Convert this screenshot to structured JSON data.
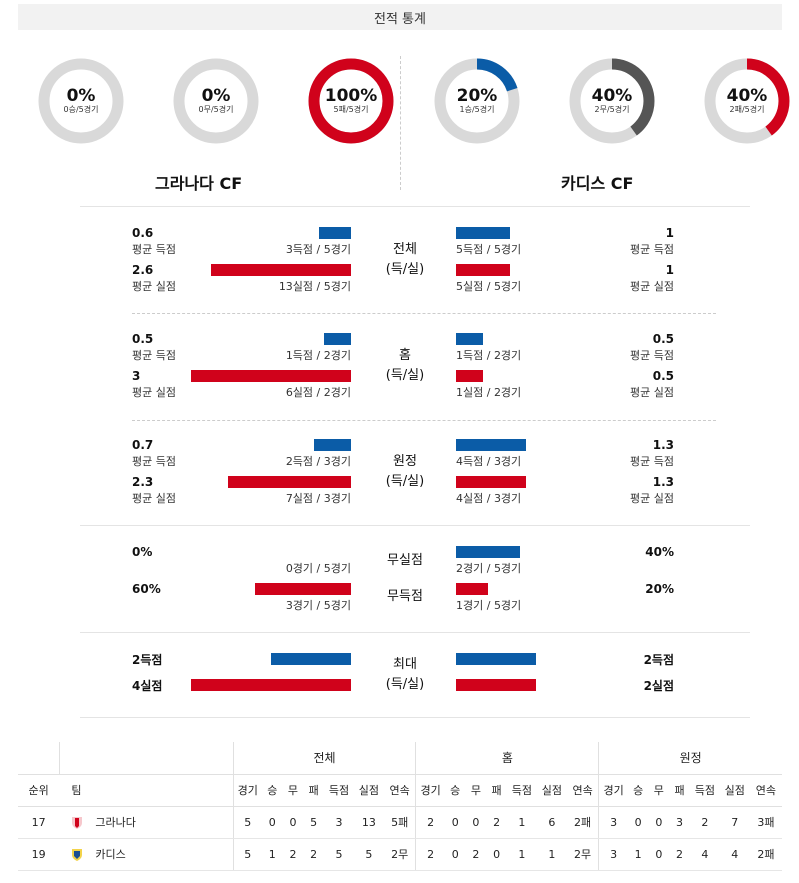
{
  "title": "전적 통계",
  "teams": {
    "left": {
      "name": "그라나다 CF"
    },
    "right": {
      "name": "카디스 CF"
    }
  },
  "donuts": {
    "left": [
      {
        "pct": "0%",
        "sub": "0승/5경기",
        "value": 0,
        "color": "#d0021b"
      },
      {
        "pct": "0%",
        "sub": "0무/5경기",
        "value": 0,
        "color": "#666666"
      },
      {
        "pct": "100%",
        "sub": "5패/5경기",
        "value": 100,
        "color": "#d0021b"
      }
    ],
    "right": [
      {
        "pct": "20%",
        "sub": "1승/5경기",
        "value": 20,
        "color": "#0b5ca7"
      },
      {
        "pct": "40%",
        "sub": "2무/5경기",
        "value": 40,
        "color": "#555555"
      },
      {
        "pct": "40%",
        "sub": "2패/5경기",
        "value": 40,
        "color": "#d0021b"
      }
    ]
  },
  "stats": {
    "overall": {
      "label1": "전체",
      "label2": "(득/실)",
      "left_scored": "0.6",
      "left_scored_label": "평균 득점",
      "left_scored_count": "3득점 / 5경기",
      "left_conceded": "2.6",
      "left_conceded_label": "평균 실점",
      "left_conceded_count": "13실점 / 5경기",
      "right_scored": "1",
      "right_scored_label": "평균 득점",
      "right_scored_count": "5득점 / 5경기",
      "right_conceded": "1",
      "right_conceded_label": "평균 실점",
      "right_conceded_count": "5실점 / 5경기"
    },
    "home": {
      "label1": "홈",
      "label2": "(득/실)",
      "left_scored": "0.5",
      "left_scored_label": "평균 득점",
      "left_scored_count": "1득점 / 2경기",
      "left_conceded": "3",
      "left_conceded_label": "평균 실점",
      "left_conceded_count": "6실점 / 2경기",
      "right_scored": "0.5",
      "right_scored_label": "평균 득점",
      "right_scored_count": "1득점 / 2경기",
      "right_conceded": "0.5",
      "right_conceded_label": "평균 실점",
      "right_conceded_count": "1실점 / 2경기"
    },
    "away": {
      "label1": "원정",
      "label2": "(득/실)",
      "left_scored": "0.7",
      "left_scored_label": "평균 득점",
      "left_scored_count": "2득점 / 3경기",
      "left_conceded": "2.3",
      "left_conceded_label": "평균 실점",
      "left_conceded_count": "7실점 / 3경기",
      "right_scored": "1.3",
      "right_scored_label": "평균 득점",
      "right_scored_count": "4득점 / 3경기",
      "right_conceded": "1.3",
      "right_conceded_label": "평균 실점",
      "right_conceded_count": "4실점 / 3경기"
    },
    "clean": {
      "cs_label": "무실점",
      "fts_label": "무득점",
      "left_cs": "0%",
      "left_cs_count": "0경기 / 5경기",
      "left_fts": "60%",
      "left_fts_count": "3경기 / 5경기",
      "right_cs": "40%",
      "right_cs_count": "2경기 / 5경기",
      "right_fts": "20%",
      "right_fts_count": "1경기 / 5경기"
    },
    "max": {
      "label1": "최대",
      "label2": "(득/실)",
      "left_scored": "2득점",
      "left_conceded": "4실점",
      "right_scored": "2득점",
      "right_conceded": "2실점"
    }
  },
  "bar_levels": {
    "overall": {
      "ls": 0.6,
      "lc": 2.6,
      "rs": 1,
      "rc": 1
    },
    "home": {
      "ls": 0.5,
      "lc": 3,
      "rs": 0.5,
      "rc": 0.5
    },
    "away": {
      "ls": 0.7,
      "lc": 2.3,
      "rs": 1.3,
      "rc": 1.3
    },
    "clean": {
      "ls": 0,
      "lc": 60,
      "rs": 40,
      "rc": 20
    },
    "max": {
      "ls": 2,
      "lc": 4,
      "rs": 2,
      "rc": 2
    }
  },
  "table": {
    "groups": [
      "전체",
      "홈",
      "원정"
    ],
    "rank_header": "순위",
    "team_header": "팀",
    "columns": [
      "경기",
      "승",
      "무",
      "패",
      "득점",
      "실점",
      "연속"
    ],
    "rows": [
      {
        "rank": "17",
        "team": "그라나다",
        "crest": "granada-crest-icon",
        "overall": [
          "5",
          "0",
          "0",
          "5",
          "3",
          "13",
          "5패"
        ],
        "home": [
          "2",
          "0",
          "0",
          "2",
          "1",
          "6",
          "2패"
        ],
        "away": [
          "3",
          "0",
          "0",
          "3",
          "2",
          "7",
          "3패"
        ]
      },
      {
        "rank": "19",
        "team": "카디스",
        "crest": "cadiz-crest-icon",
        "overall": [
          "5",
          "1",
          "2",
          "2",
          "5",
          "5",
          "2무"
        ],
        "home": [
          "2",
          "0",
          "2",
          "0",
          "1",
          "1",
          "2무"
        ],
        "away": [
          "3",
          "1",
          "0",
          "2",
          "4",
          "4",
          "2패"
        ]
      }
    ]
  }
}
